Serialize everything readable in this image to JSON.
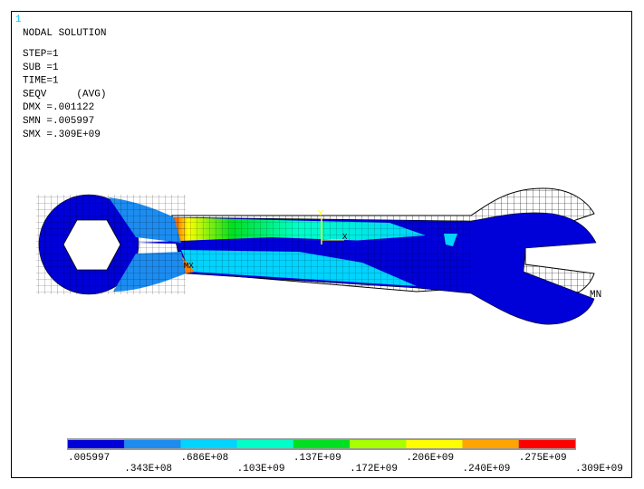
{
  "window_number": "1",
  "header": {
    "title": "NODAL SOLUTION",
    "lines": [
      "STEP=1",
      "SUB =1",
      "TIME=1",
      "SEQV     (AVG)",
      "DMX =.001122",
      "SMN =.005997",
      "SMX =.309E+09"
    ]
  },
  "annotations": {
    "y_axis": "Y",
    "x_axis": "X",
    "max": "MX",
    "min": "MN"
  },
  "legend": {
    "colors": [
      "#0000d8",
      "#1c8cf0",
      "#00d4ff",
      "#00ffc8",
      "#00e020",
      "#a8ff00",
      "#ffff00",
      "#ffa400",
      "#ff0000"
    ],
    "labels": [
      ".005997",
      ".343E+08",
      ".686E+08",
      ".103E+09",
      ".137E+09",
      ".172E+09",
      ".206E+09",
      ".240E+09",
      ".275E+09",
      ".309E+09"
    ]
  }
}
